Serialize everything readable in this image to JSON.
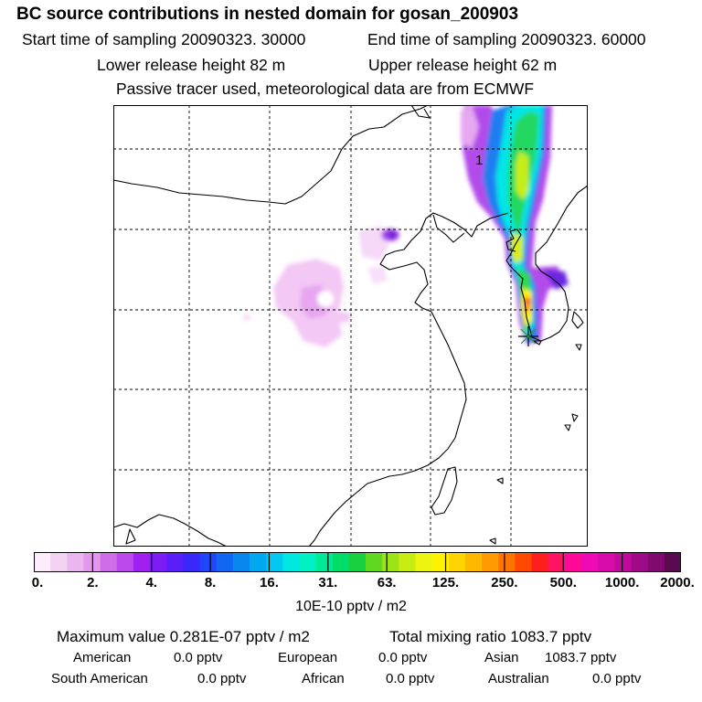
{
  "header": {
    "title": "BC  source contributions in nested domain for gosan_200903",
    "start_time": "Start time of sampling 20090323. 30000",
    "end_time": "End time of sampling 20090323. 60000",
    "lower_release": "Lower release height   82 m",
    "upper_release": "Upper release height   62 m",
    "tracer_info": "Passive tracer used, meteorological data are from ECMWF"
  },
  "map": {
    "contour_label": "1",
    "receptor_marker": "star-icon",
    "colors": {
      "land_outline": "#000000",
      "grid": "#000000",
      "background": "#ffffff"
    }
  },
  "colorbar": {
    "ticks": [
      "0.",
      "2.",
      "4.",
      "8.",
      "16.",
      "31.",
      "63.",
      "125.",
      "250.",
      "500.",
      "1000.",
      "2000."
    ],
    "colors": [
      "#fcecfc",
      "#f4d2f4",
      "#ebb6f0",
      "#e398ec",
      "#cd6ee8",
      "#bb49ec",
      "#a020f0",
      "#7e1cf6",
      "#5a1ef8",
      "#3a28fa",
      "#2046fa",
      "#1068f2",
      "#0888ee",
      "#00a8f0",
      "#00c8ee",
      "#00e8e0",
      "#00f2c4",
      "#00ea96",
      "#00dc6a",
      "#18d040",
      "#60d820",
      "#9ce418",
      "#c8ec10",
      "#ecf410",
      "#fff200",
      "#ffd400",
      "#ffb800",
      "#ff9a00",
      "#ff7400",
      "#ff4800",
      "#ff1e1e",
      "#ff1464",
      "#ff0a96",
      "#f00ab4",
      "#d80aaa",
      "#c00a9a",
      "#a00a88",
      "#800a70",
      "#5a0a50"
    ],
    "unit": "10E-10 pptv / m2"
  },
  "footer": {
    "max_value": "Maximum value  0.281E-07 pptv / m2",
    "total_mixing": "Total mixing ratio     1083.7 pptv",
    "american": {
      "label": "American",
      "value": "0.0 pptv"
    },
    "european": {
      "label": "European",
      "value": "0.0 pptv"
    },
    "asian": {
      "label": "Asian",
      "value": "1083.7 pptv"
    },
    "south_american": {
      "label": "South American",
      "value": "0.0 pptv"
    },
    "african": {
      "label": "African",
      "value": "0.0 pptv"
    },
    "australian": {
      "label": "Australian",
      "value": "0.0 pptv"
    }
  }
}
